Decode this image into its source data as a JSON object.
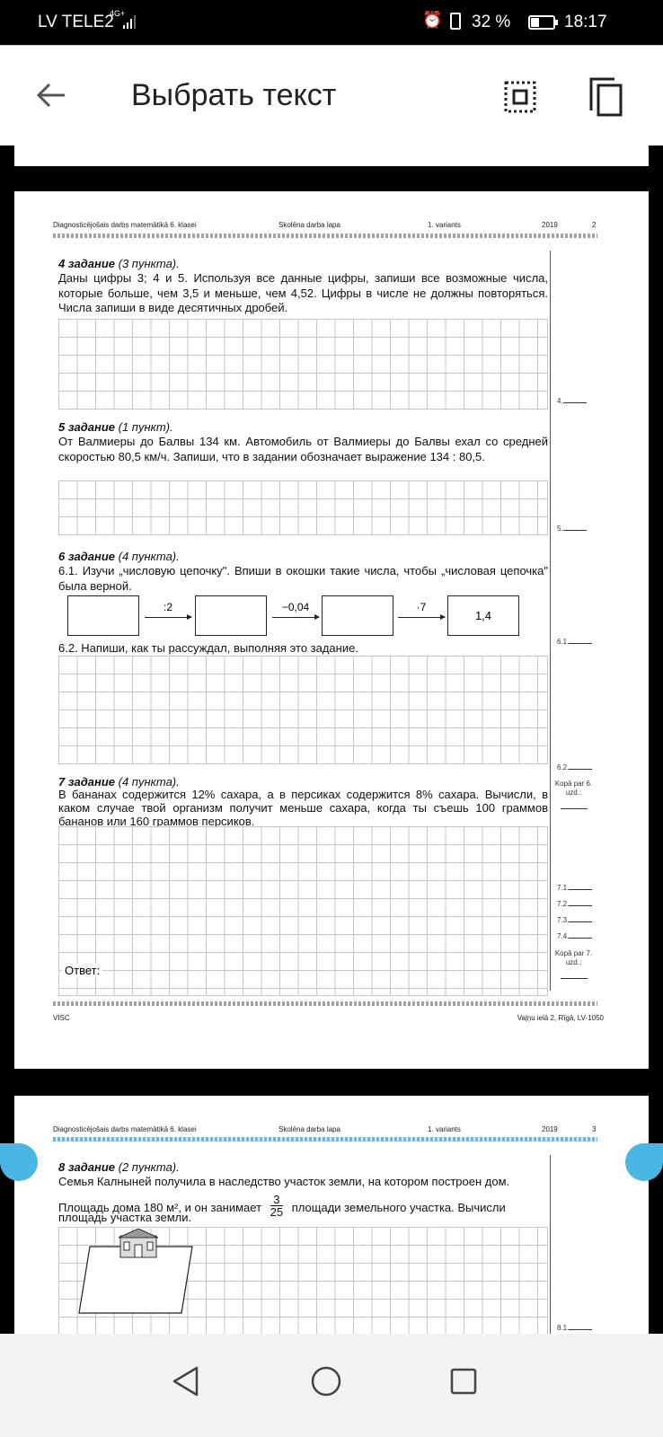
{
  "status_bar": {
    "carrier": "LV TELE2",
    "network": "4G+",
    "battery": "32 %",
    "time": "18:17"
  },
  "app_bar": {
    "title": "Выбрать текст",
    "back_icon": "arrow-left-icon",
    "select_all_icon": "select-all-icon",
    "copy_icon": "copy-icon"
  },
  "page1": {
    "header": {
      "subject": "Diagnosticējošais darbs matemātikā 6. klasei",
      "sheet": "Skolēna darba lapa",
      "variant": "1. variants",
      "year": "2019",
      "page": "2"
    },
    "task4": {
      "title": "4 задание",
      "points": "(3 пункта).",
      "text": "Даны цифры 3; 4 и 5. Используя все данные цифры, запиши все возможные числа, которые больше, чем 3,5 и меньше, чем 4,52. Цифры в числе не должны повторяться. Числа запиши в виде десятичных дробей.",
      "score": "4."
    },
    "task5": {
      "title": "5 задание",
      "points": "(1 пункт).",
      "text": "От Валмиеры до Балвы 134 км. Автомобиль от Валмиеры до Балвы ехал со средней скоростью 80,5 км/ч. Запиши, что в задании обозначает выражение 134 : 80,5.",
      "score": "5."
    },
    "task6": {
      "title": "6 задание",
      "points": "(4 пункта).",
      "text1": "6.1. Изучи „числовую цепочку\". Впиши в окошки такие числа, чтобы „числовая цепочка\" была верной.",
      "chain": {
        "op1": ":2",
        "op2": "−0,04",
        "op3": "·7",
        "result": "1,4"
      },
      "text2": "6.2. Напиши, как ты рассуждал, выполняя это задание.",
      "score1": "6.1.",
      "score2": "6.2.",
      "total": "Kopā par 6. uzd.:"
    },
    "task7": {
      "title": "7 задание",
      "points": "(4 пункта).",
      "text": "В бананах содержится 12% сахара, а в персиках содержится 8% сахара. Вычисли, в каком случае твой организм получит меньше сахара, когда ты съешь 100 граммов бананов или 160 граммов персиков.",
      "answer_label": "Ответ:",
      "scores": [
        "7.1.",
        "7.2.",
        "7.3.",
        "7.4."
      ],
      "total": "Kopā par 7. uzd.:"
    },
    "footer": {
      "left": "VISC",
      "right": "Vaļņu ielā 2, Rīgā, LV-1050"
    }
  },
  "page2": {
    "header": {
      "subject": "Diagnosticējošais darbs matemātikā 6. klasei",
      "sheet": "Skolēna darba lapa",
      "variant": "1. variants",
      "year": "2019",
      "page": "3"
    },
    "task8": {
      "title": "8 задание",
      "points": "(2 пункта).",
      "text1": "Семья Калныней получила в наследство участок земли, на котором построен дом.",
      "text2a": "Площадь дома 180 м², и он занимает",
      "frac_num": "3",
      "frac_den": "25",
      "text2b": "площади земельного участка. Вычисли",
      "text3": "площадь участка земли.",
      "score": "8.1."
    }
  },
  "nav_bar": {
    "back_icon": "triangle-back-icon",
    "home_icon": "circle-home-icon",
    "recents_icon": "square-recents-icon"
  },
  "colors": {
    "selection_handle": "#4ab6e3"
  }
}
